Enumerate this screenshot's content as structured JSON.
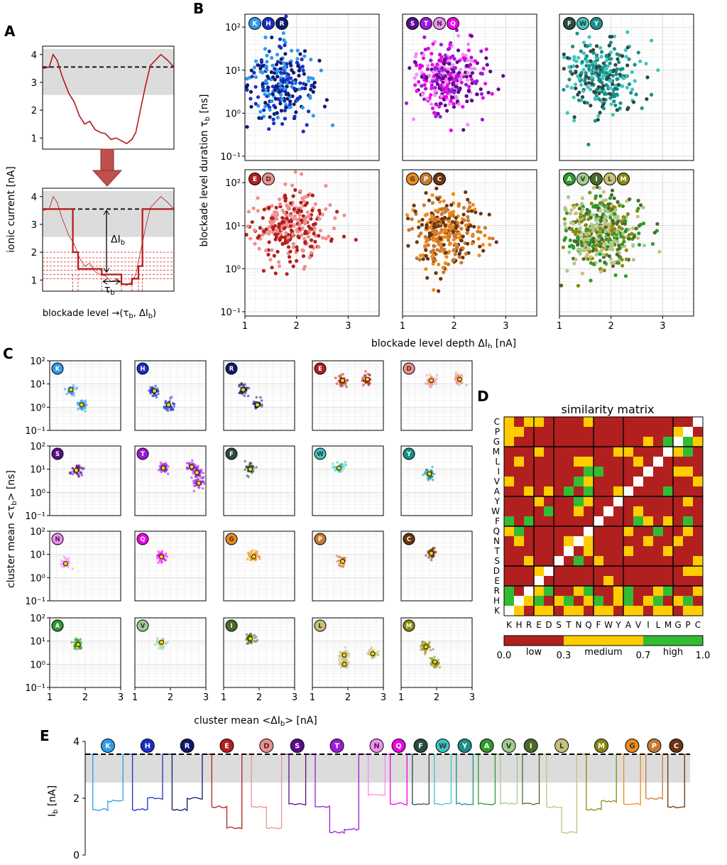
{
  "chart_data": [
    {
      "panel": "A",
      "type": "line",
      "ylabel": "ionic current [nA]",
      "xlabel": "blockade level →(τb, ΔIb)",
      "y_ticks": [
        "1",
        "2",
        "3",
        "4"
      ],
      "ylim": [
        0.6,
        4.3
      ],
      "open_pore_level": 3.55,
      "open_band": [
        2.55,
        4.2
      ],
      "delta_label": "ΔIb",
      "tau_label": "τb",
      "raw_trace": [
        [
          0,
          3.5
        ],
        [
          0.05,
          3.55
        ],
        [
          0.08,
          4.0
        ],
        [
          0.11,
          3.8
        ],
        [
          0.15,
          3.2
        ],
        [
          0.2,
          2.6
        ],
        [
          0.24,
          2.3
        ],
        [
          0.28,
          1.8
        ],
        [
          0.32,
          1.5
        ],
        [
          0.36,
          1.6
        ],
        [
          0.4,
          1.3
        ],
        [
          0.44,
          1.2
        ],
        [
          0.48,
          1.15
        ],
        [
          0.52,
          0.95
        ],
        [
          0.56,
          1.0
        ],
        [
          0.6,
          0.9
        ],
        [
          0.64,
          0.8
        ],
        [
          0.68,
          0.95
        ],
        [
          0.71,
          1.2
        ],
        [
          0.74,
          1.9
        ],
        [
          0.78,
          2.8
        ],
        [
          0.82,
          3.6
        ],
        [
          0.86,
          3.8
        ],
        [
          0.9,
          4.0
        ],
        [
          0.95,
          3.8
        ],
        [
          1,
          3.55
        ]
      ],
      "levels": [
        [
          0,
          3.55
        ],
        [
          0.23,
          3.55
        ],
        [
          0.23,
          2.0
        ],
        [
          0.27,
          2.0
        ],
        [
          0.27,
          1.4
        ],
        [
          0.45,
          1.4
        ],
        [
          0.45,
          1.2
        ],
        [
          0.6,
          1.2
        ],
        [
          0.6,
          0.85
        ],
        [
          0.68,
          0.85
        ],
        [
          0.68,
          1.05
        ],
        [
          0.73,
          1.05
        ],
        [
          0.73,
          1.5
        ],
        [
          0.76,
          1.5
        ],
        [
          0.76,
          3.55
        ],
        [
          1,
          3.55
        ]
      ],
      "dashed_levels": [
        2.0,
        1.8,
        1.65,
        1.5,
        1.35,
        1.2,
        1.05
      ]
    },
    {
      "panel": "B",
      "type": "scatter",
      "xlabel": "blockade level depth ΔIb [nA]",
      "ylabel": "blockade level duration τb [ns]",
      "x_ticks": [
        "1",
        "2",
        "3"
      ],
      "y_ticks": [
        "10⁻¹",
        "10⁰",
        "10¹",
        "10²"
      ],
      "xlim": [
        1,
        3.6
      ],
      "ylim_log10": [
        -1.1,
        2.3
      ],
      "groups": [
        {
          "letters": [
            "K",
            "H",
            "R"
          ],
          "colors": [
            "#2f9be8",
            "#1a2fc8",
            "#0e1a6b"
          ],
          "center_log_tau": 0.65,
          "center_di": 1.7,
          "n": 500
        },
        {
          "letters": [
            "S",
            "T",
            "N",
            "Q"
          ],
          "colors": [
            "#5a0c8c",
            "#9b1bd9",
            "#f28ef3",
            "#f000e8"
          ],
          "center_log_tau": 0.8,
          "center_di": 1.85,
          "n": 620
        },
        {
          "letters": [
            "F",
            "W",
            "Y"
          ],
          "colors": [
            "#2b4a44",
            "#3cc6c0",
            "#1a8f88"
          ],
          "center_log_tau": 0.85,
          "center_di": 1.8,
          "n": 560
        },
        {
          "letters": [
            "E",
            "D"
          ],
          "colors": [
            "#b3201f",
            "#ef8f8d"
          ],
          "center_log_tau": 1.0,
          "center_di": 1.85,
          "n": 560
        },
        {
          "letters": [
            "G",
            "P",
            "C"
          ],
          "colors": [
            "#ef8a1a",
            "#c77a33",
            "#6b3410"
          ],
          "center_log_tau": 0.9,
          "center_di": 1.8,
          "n": 600
        },
        {
          "letters": [
            "A",
            "V",
            "I",
            "L",
            "M"
          ],
          "colors": [
            "#2e9a2e",
            "#9fcc90",
            "#4a6b2a",
            "#c9c07a",
            "#8a8a10"
          ],
          "center_log_tau": 0.9,
          "center_di": 1.75,
          "n": 900
        }
      ]
    },
    {
      "panel": "C",
      "type": "scatter",
      "xlabel": "cluster mean <ΔIb> [nA]",
      "ylabel": "cluster mean <τb> [ns]",
      "x_ticks": [
        "1",
        "2",
        "3"
      ],
      "y_ticks": [
        "10⁻¹",
        "10⁰",
        "10¹",
        "10²"
      ],
      "xlim": [
        1,
        3
      ],
      "ylim_log10": [
        -1,
        2
      ],
      "cells": [
        {
          "letter": "K",
          "color": "#2f9be8",
          "means": [
            [
              1.6,
              0.75
            ],
            [
              1.9,
              0.1
            ]
          ]
        },
        {
          "letter": "H",
          "color": "#1a2fc8",
          "means": [
            [
              1.55,
              0.7
            ],
            [
              1.95,
              0.1
            ]
          ]
        },
        {
          "letter": "R",
          "color": "#0e1a6b",
          "means": [
            [
              1.55,
              0.75
            ],
            [
              1.95,
              0.1
            ]
          ]
        },
        {
          "letter": "E",
          "color": "#b3201f",
          "means": [
            [
              1.85,
              1.15
            ],
            [
              2.55,
              1.2
            ]
          ]
        },
        {
          "letter": "D",
          "color": "#ef8f8d",
          "means": [
            [
              1.85,
              1.15
            ],
            [
              2.65,
              1.2
            ]
          ]
        },
        {
          "letter": "S",
          "color": "#5a0c8c",
          "means": [
            [
              1.75,
              0.95
            ]
          ]
        },
        {
          "letter": "T",
          "color": "#9b1bd9",
          "means": [
            [
              1.8,
              1.05
            ],
            [
              2.6,
              1.1
            ],
            [
              2.75,
              0.85
            ],
            [
              2.8,
              0.4
            ]
          ]
        },
        {
          "letter": "F",
          "color": "#2b4a44",
          "means": [
            [
              1.75,
              1.0
            ]
          ]
        },
        {
          "letter": "W",
          "color": "#3cc6c0",
          "means": [
            [
              1.75,
              1.05
            ]
          ]
        },
        {
          "letter": "Y",
          "color": "#1a8f88",
          "means": [
            [
              1.8,
              0.8
            ]
          ]
        },
        {
          "letter": "N",
          "color": "#f28ef3",
          "means": [
            [
              1.45,
              0.6
            ]
          ]
        },
        {
          "letter": "Q",
          "color": "#f000e8",
          "means": [
            [
              1.75,
              0.9
            ]
          ]
        },
        {
          "letter": "G",
          "color": "#ef8a1a",
          "means": [
            [
              1.85,
              0.9
            ]
          ]
        },
        {
          "letter": "P",
          "color": "#c77a33",
          "means": [
            [
              1.85,
              0.7
            ]
          ]
        },
        {
          "letter": "C",
          "color": "#6b3410",
          "means": [
            [
              1.85,
              1.05
            ]
          ]
        },
        {
          "letter": "A",
          "color": "#2e9a2e",
          "means": [
            [
              1.8,
              0.85
            ]
          ]
        },
        {
          "letter": "V",
          "color": "#9fcc90",
          "means": [
            [
              1.75,
              0.95
            ]
          ]
        },
        {
          "letter": "I",
          "color": "#4a6b2a",
          "means": [
            [
              1.75,
              1.1
            ]
          ]
        },
        {
          "letter": "L",
          "color": "#c9c07a",
          "means": [
            [
              1.9,
              0.4
            ],
            [
              1.9,
              0.0
            ],
            [
              2.7,
              0.45
            ]
          ]
        },
        {
          "letter": "M",
          "color": "#8a8a10",
          "means": [
            [
              1.7,
              0.75
            ],
            [
              1.95,
              0.1
            ]
          ]
        }
      ]
    },
    {
      "panel": "D",
      "type": "heatmap",
      "title": "similarity matrix",
      "x_labels": [
        "K",
        "H",
        "R",
        "E",
        "D",
        "S",
        "T",
        "N",
        "Q",
        "F",
        "W",
        "Y",
        "A",
        "V",
        "I",
        "L",
        "M",
        "G",
        "P",
        "C"
      ],
      "y_labels_top_to_bottom": [
        "C",
        "P",
        "G",
        "M",
        "L",
        "I",
        "V",
        "A",
        "Y",
        "W",
        "F",
        "Q",
        "N",
        "T",
        "S",
        "D",
        "E",
        "R",
        "H",
        "K"
      ],
      "levels": [
        "low",
        "medium",
        "high",
        "self"
      ],
      "colormap": {
        "low": "#b21f1f",
        "medium": "#ffcc00",
        "high": "#33bb33",
        "self": "#ffffff"
      },
      "colorbar": {
        "ticks": [
          "0.0",
          "0.3",
          "0.7",
          "1.0"
        ],
        "labels": [
          "low",
          "medium",
          "high"
        ]
      },
      "group_boundaries": [
        3,
        5,
        9,
        12,
        17
      ],
      "matrix": [
        "y.yyllllyllllllllll.",
        ".yyllllllllllllllly.",
        "ygyllllllllllllly.g",
        "yyglllylllllllyy.ll",
        "lllllylllllyylll.yl",
        "lllyyllllllllgg.lll",
        "lllllyyllllllgy.llll",
        "lllglllllylylg.gl.yl",
        "lllllllylllyll.gyll",
        "llllylllllll.gllyl",
        "lllllgylylg.gl.lll",
        "lllyllglly.yglllllll",
        "lylllllyl.yllylllly",
        "llylllyl.lyllllllll",
        "llllgly.lllllllly",
        "lllyy.lllllllll",
        "lll.yllllll",
        "yg.l",
        "g.y",
        ".yy"
      ]
    },
    {
      "panel": "E",
      "type": "line",
      "ylabel": "Ib [nA]",
      "y_ticks": [
        "0",
        "2",
        "4"
      ],
      "ylim": [
        0,
        4
      ],
      "open_pore_level": 3.55,
      "open_band": [
        2.55,
        3.55
      ],
      "events": [
        {
          "letter": "K",
          "color": "#2f9be8",
          "levels": [
            1.6,
            1.9
          ]
        },
        {
          "letter": "H",
          "color": "#1a2fc8",
          "levels": [
            1.6,
            2.0
          ]
        },
        {
          "letter": "R",
          "color": "#0e1a6b",
          "levels": [
            1.6,
            2.0
          ]
        },
        {
          "letter": "E",
          "color": "#b3201f",
          "levels": [
            1.7,
            0.95
          ]
        },
        {
          "letter": "D",
          "color": "#ef8f8d",
          "levels": [
            1.7,
            0.95
          ]
        },
        {
          "letter": "S",
          "color": "#5a0c8c",
          "levels": [
            1.8
          ]
        },
        {
          "letter": "T",
          "color": "#9b1bd9",
          "levels": [
            1.7,
            0.8,
            0.9
          ]
        },
        {
          "letter": "N",
          "color": "#f28ef3",
          "levels": [
            2.1
          ]
        },
        {
          "letter": "Q",
          "color": "#f000e8",
          "levels": [
            1.8
          ]
        },
        {
          "letter": "F",
          "color": "#2b4a44",
          "levels": [
            1.8
          ]
        },
        {
          "letter": "W",
          "color": "#3cc6c0",
          "levels": [
            1.8
          ]
        },
        {
          "letter": "Y",
          "color": "#1a8f88",
          "levels": [
            1.8
          ]
        },
        {
          "letter": "A",
          "color": "#2e9a2e",
          "levels": [
            1.8
          ]
        },
        {
          "letter": "V",
          "color": "#9fcc90",
          "levels": [
            1.8
          ]
        },
        {
          "letter": "I",
          "color": "#4a6b2a",
          "levels": [
            1.8
          ]
        },
        {
          "letter": "L",
          "color": "#c9c07a",
          "levels": [
            1.7,
            0.8
          ]
        },
        {
          "letter": "M",
          "color": "#8a8a10",
          "levels": [
            1.6,
            1.9
          ]
        },
        {
          "letter": "G",
          "color": "#ef8a1a",
          "levels": [
            1.8
          ]
        },
        {
          "letter": "P",
          "color": "#c77a33",
          "levels": [
            2.0
          ]
        },
        {
          "letter": "C",
          "color": "#6b3410",
          "levels": [
            1.7
          ]
        }
      ]
    }
  ]
}
